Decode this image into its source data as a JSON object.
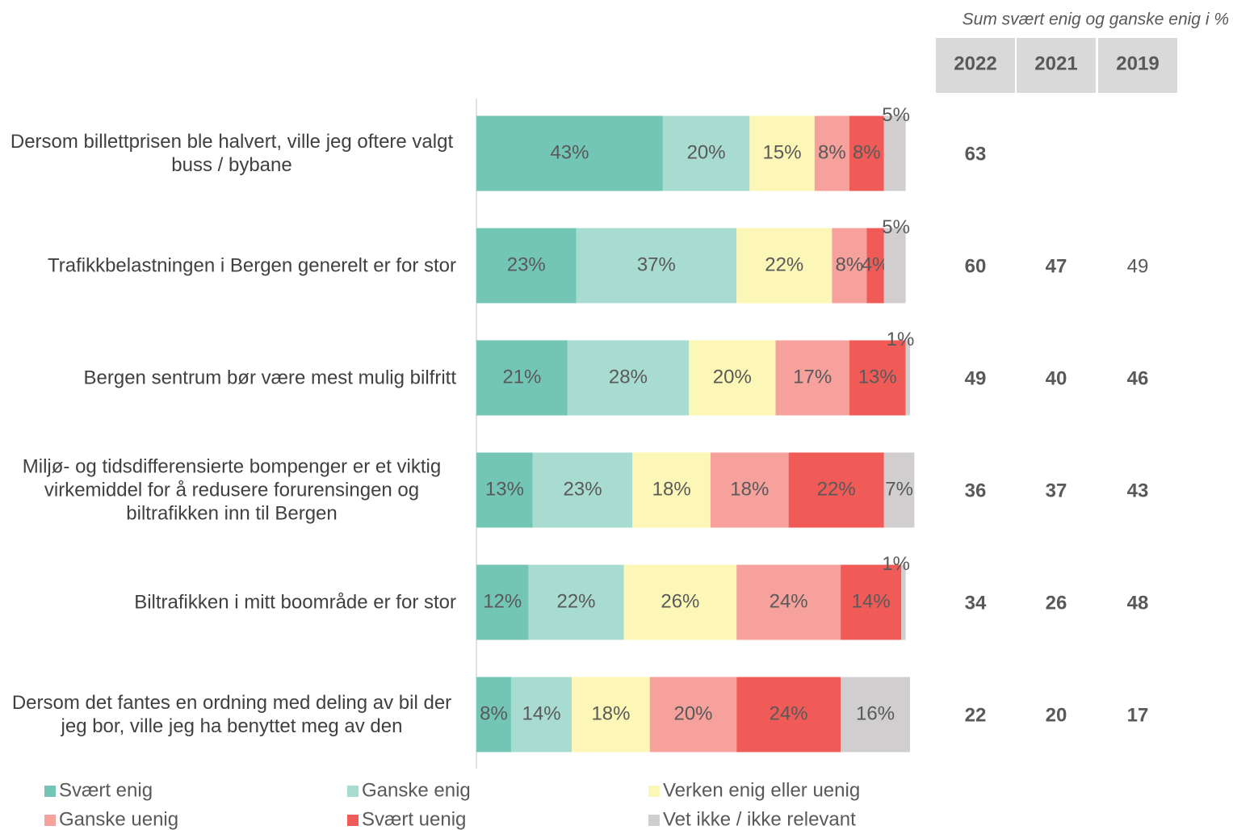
{
  "chart_data": {
    "type": "bar",
    "orientation": "horizontal",
    "stacked": true,
    "categories": [
      "Dersom billettprisen ble halvert, ville jeg oftere valgt buss / bybane",
      "Trafikkbelastningen i Bergen generelt er for stor",
      "Bergen sentrum bør være mest mulig bilfritt",
      "Miljø- og tidsdifferensierte bompenger er et viktig virkemiddel for å redusere forurensingen og biltrafikken inn til Bergen",
      "Biltrafikken i mitt boområde er for stor",
      "Dersom det fantes en ordning med deling av bil der jeg bor, ville jeg ha benyttet meg av den"
    ],
    "xlim": [
      0,
      100
    ],
    "series": [
      {
        "name": "Svært enig",
        "color": "#73c6b6",
        "values": [
          43,
          23,
          21,
          13,
          12,
          8
        ],
        "value_labels": [
          "43%",
          "23%",
          "21%",
          "13%",
          "12%",
          "8%"
        ]
      },
      {
        "name": "Ganske enig",
        "color": "#a9dcd1",
        "values": [
          20,
          37,
          28,
          23,
          22,
          14
        ],
        "value_labels": [
          "20%",
          "37%",
          "28%",
          "23%",
          "22%",
          "14%"
        ]
      },
      {
        "name": "Verken enig eller uenig",
        "color": "#fdf7b7",
        "values": [
          15,
          22,
          20,
          18,
          26,
          18
        ],
        "value_labels": [
          "15%",
          "22%",
          "20%",
          "18%",
          "26%",
          "18%"
        ]
      },
      {
        "name": "Ganske uenig",
        "color": "#f6a19c",
        "values": [
          8,
          8,
          17,
          18,
          24,
          20
        ],
        "value_labels": [
          "8%",
          "8%",
          "17%",
          "18%",
          "24%",
          "20%"
        ]
      },
      {
        "name": "Svært uenig",
        "color": "#f05b57",
        "values": [
          8,
          4,
          13,
          22,
          14,
          24
        ],
        "value_labels": [
          "8%",
          "4%",
          "13%",
          "22%",
          "14%",
          "24%"
        ]
      },
      {
        "name": "Vet ikke / ikke relevant",
        "color": "#d0cece",
        "values": [
          5,
          5,
          1,
          7,
          1,
          16
        ],
        "value_labels": [
          "5%",
          "5%",
          "1%",
          "7%",
          "1%",
          "16%"
        ]
      }
    ]
  },
  "table": {
    "title": "Sum svært enig og ganske enig i %",
    "columns": [
      "2022",
      "2021",
      "2019"
    ],
    "rows": [
      [
        {
          "value": 63,
          "color": "#404040",
          "bold": true
        },
        null,
        null
      ],
      [
        {
          "value": 60,
          "color": "#5fb8a4",
          "bold": true
        },
        {
          "value": 47,
          "color": "#ec5b57",
          "bold": true
        },
        {
          "value": 49,
          "color": "#595959",
          "bold": false
        }
      ],
      [
        {
          "value": 49,
          "color": "#5fb8a4",
          "bold": true
        },
        {
          "value": 40,
          "color": "#ec5b57",
          "bold": true
        },
        {
          "value": 46,
          "color": "#404040",
          "bold": true
        }
      ],
      [
        {
          "value": 36,
          "color": "#404040",
          "bold": true
        },
        {
          "value": 37,
          "color": "#ec5b57",
          "bold": true
        },
        {
          "value": 43,
          "color": "#404040",
          "bold": true
        }
      ],
      [
        {
          "value": 34,
          "color": "#5fb8a4",
          "bold": true
        },
        {
          "value": 26,
          "color": "#ec5b57",
          "bold": true
        },
        {
          "value": 48,
          "color": "#404040",
          "bold": true
        }
      ],
      [
        {
          "value": 22,
          "color": "#404040",
          "bold": true
        },
        {
          "value": 20,
          "color": "#404040",
          "bold": true
        },
        {
          "value": 17,
          "color": "#404040",
          "bold": true
        }
      ]
    ]
  }
}
